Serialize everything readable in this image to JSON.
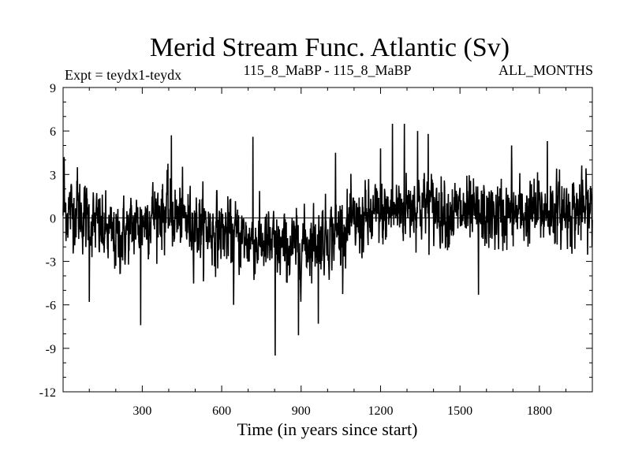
{
  "chart_data": {
    "type": "line",
    "title": "Merid Stream Func. Atlantic (Sv)",
    "subtitle_left": "Expt = teydx1-teydx",
    "subtitle_center": "115_8_MaBP - 115_8_MaBP",
    "subtitle_right": "ALL_MONTHS",
    "xlabel": "Time (in years since start)",
    "ylabel": "",
    "xlim": [
      1,
      2000
    ],
    "ylim": [
      -12,
      9
    ],
    "x_ticks": [
      300,
      600,
      900,
      1200,
      1500,
      1800
    ],
    "y_ticks": [
      -12,
      -9,
      -6,
      -3,
      0,
      3,
      6,
      9
    ],
    "zero_line": true,
    "grid": false,
    "series": [
      {
        "name": "Merid Stream Func. Atlantic",
        "x": [
          1,
          2000
        ],
        "segment_means": [
          {
            "x": [
              1,
              100
            ],
            "mean": 0.5
          },
          {
            "x": [
              100,
              300
            ],
            "mean": -1.5
          },
          {
            "x": [
              300,
              420
            ],
            "mean": 0.5
          },
          {
            "x": [
              420,
              700
            ],
            "mean": -0.8
          },
          {
            "x": [
              700,
              1000
            ],
            "mean": -2.2
          },
          {
            "x": [
              1000,
              1200
            ],
            "mean": -0.5
          },
          {
            "x": [
              1200,
              1450
            ],
            "mean": 1.0
          },
          {
            "x": [
              1450,
              1700
            ],
            "mean": 0.0
          },
          {
            "x": [
              1700,
              2000
            ],
            "mean": 0.5
          }
        ],
        "noise_sd": 1.7,
        "extremes": [
          {
            "x": 5,
            "value": 4.2
          },
          {
            "x": 55,
            "value": 3.5
          },
          {
            "x": 100,
            "value": -5.8
          },
          {
            "x": 294,
            "value": -7.4
          },
          {
            "x": 410,
            "value": 5.7
          },
          {
            "x": 645,
            "value": -6.0
          },
          {
            "x": 718,
            "value": 5.6
          },
          {
            "x": 802,
            "value": -9.5
          },
          {
            "x": 890,
            "value": -8.1
          },
          {
            "x": 965,
            "value": -7.3
          },
          {
            "x": 1030,
            "value": 4.5
          },
          {
            "x": 1200,
            "value": 4.8
          },
          {
            "x": 1245,
            "value": 6.5
          },
          {
            "x": 1290,
            "value": 6.5
          },
          {
            "x": 1340,
            "value": 6.0
          },
          {
            "x": 1380,
            "value": 5.8
          },
          {
            "x": 1570,
            "value": -5.3
          },
          {
            "x": 1695,
            "value": 5.0
          },
          {
            "x": 1830,
            "value": 5.3
          }
        ]
      }
    ]
  }
}
